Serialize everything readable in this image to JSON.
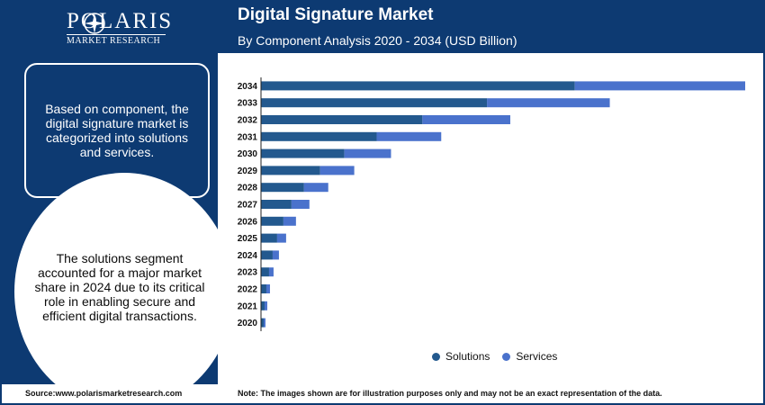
{
  "brand": {
    "name": "POLARIS",
    "tagline": "MARKET RESEARCH"
  },
  "header": {
    "title": "Digital Signature Market",
    "subtitle": "By Component Analysis 2020 - 2034 (USD Billion)"
  },
  "sidebar": {
    "box_text": "Based on component, the digital signature market is categorized into solutions and services.",
    "circle_text": "The solutions segment accounted for a major market share in 2024 due to its critical role in enabling secure and efficient digital transactions."
  },
  "footer": {
    "source": "Source:www.polarismarketresearch.com",
    "note": "Note: The images shown are for illustration purposes only and may not be an exact representation of the data."
  },
  "colors": {
    "navy": "#0d3a72",
    "solutions": "#23598e",
    "services": "#4a72cc"
  },
  "chart_data": {
    "type": "bar",
    "orientation": "horizontal",
    "stacked": true,
    "categories": [
      "2034",
      "2033",
      "2032",
      "2031",
      "2030",
      "2029",
      "2028",
      "2027",
      "2026",
      "2025",
      "2024",
      "2023",
      "2022",
      "2021",
      "2020"
    ],
    "series": [
      {
        "name": "Solutions",
        "values": [
          35.0,
          25.2,
          18.0,
          12.9,
          9.3,
          6.6,
          4.8,
          3.4,
          2.5,
          1.8,
          1.3,
          0.9,
          0.6,
          0.4,
          0.3
        ]
      },
      {
        "name": "Services",
        "values": [
          19.0,
          13.7,
          9.8,
          7.2,
          5.2,
          3.8,
          2.7,
          2.0,
          1.4,
          1.0,
          0.7,
          0.5,
          0.4,
          0.3,
          0.2
        ]
      }
    ],
    "xlim": [
      0,
      54
    ],
    "x_axis_labels_shown": false,
    "grid": false,
    "legend": "bottom"
  }
}
